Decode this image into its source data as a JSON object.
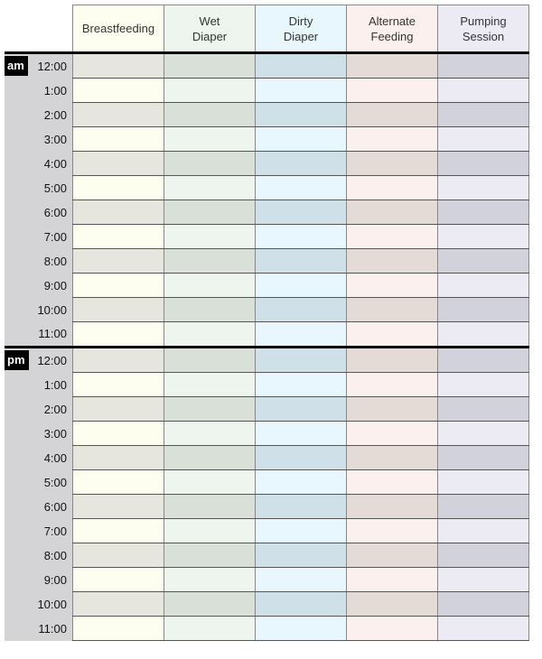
{
  "columns": [
    {
      "label": "Breastfeeding",
      "light": "#fefef0",
      "dark": "#e6e6de"
    },
    {
      "label": "Wet\nDiaper",
      "light": "#eef4ee",
      "dark": "#d8e0d8"
    },
    {
      "label": "Dirty\nDiaper",
      "light": "#e8f6fe",
      "dark": "#d0e0e8"
    },
    {
      "label": "Alternate\nFeeding",
      "light": "#fcf0ee",
      "dark": "#e4dad6"
    },
    {
      "label": "Pumping\nSession",
      "light": "#ecebf4",
      "dark": "#d2d2dc"
    }
  ],
  "periods": [
    {
      "label": "am",
      "hours": [
        "12:00",
        "1:00",
        "2:00",
        "3:00",
        "4:00",
        "5:00",
        "6:00",
        "7:00",
        "8:00",
        "9:00",
        "10:00",
        "11:00"
      ]
    },
    {
      "label": "pm",
      "hours": [
        "12:00",
        "1:00",
        "2:00",
        "3:00",
        "4:00",
        "5:00",
        "6:00",
        "7:00",
        "8:00",
        "9:00",
        "10:00",
        "11:00"
      ]
    }
  ]
}
